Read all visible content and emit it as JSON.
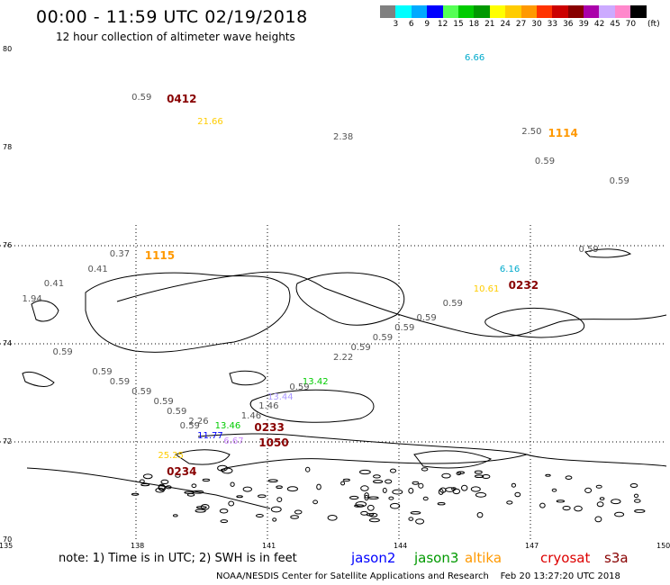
{
  "header": {
    "title": "00:00 - 11:59 UTC 02/19/2018",
    "subtitle": "12 hour collection of altimeter wave heights"
  },
  "legend": {
    "unit": "(ft)",
    "ticks": [
      "3",
      "6",
      "9",
      "12",
      "15",
      "18",
      "21",
      "24",
      "27",
      "30",
      "33",
      "36",
      "39",
      "42",
      "45",
      "70"
    ],
    "colors": [
      "#808080",
      "#00ffff",
      "#00aaff",
      "#0000ff",
      "#55ff55",
      "#00cc00",
      "#009900",
      "#ffff00",
      "#ffcc00",
      "#ff9900",
      "#ff3300",
      "#cc0000",
      "#880000",
      "#aa00aa",
      "#ccaaff",
      "#ff88cc",
      "#000000"
    ]
  },
  "axes": {
    "lat_labels": [
      "80",
      "78",
      "76",
      "74",
      "72",
      "70"
    ],
    "lon_labels": [
      "135",
      "138",
      "141",
      "144",
      "147",
      "150"
    ]
  },
  "observations": [
    {
      "text": "6.66",
      "color": "#00aacc",
      "lon": 145.5,
      "lat": 79.9
    },
    {
      "text": "0.59",
      "color": "#555555",
      "lon": 137.9,
      "lat": 79.1
    },
    {
      "text": "0412",
      "color": "#880000",
      "lon": 138.7,
      "lat": 79.1,
      "big": true
    },
    {
      "text": "21.66",
      "color": "#ffcc00",
      "lon": 139.4,
      "lat": 78.6
    },
    {
      "text": "2.38",
      "color": "#555555",
      "lon": 142.5,
      "lat": 78.3
    },
    {
      "text": "2.50",
      "color": "#555555",
      "lon": 146.8,
      "lat": 78.4
    },
    {
      "text": "1114",
      "color": "#ff9900",
      "lon": 147.4,
      "lat": 78.4,
      "big": true
    },
    {
      "text": "0.59",
      "color": "#555555",
      "lon": 147.1,
      "lat": 77.8
    },
    {
      "text": "0.59",
      "color": "#555555",
      "lon": 148.8,
      "lat": 77.4
    },
    {
      "text": "0.59",
      "color": "#555555",
      "lon": 148.1,
      "lat": 76.0
    },
    {
      "text": "6.16",
      "color": "#00aacc",
      "lon": 146.3,
      "lat": 75.6
    },
    {
      "text": "0232",
      "color": "#880000",
      "lon": 146.5,
      "lat": 75.3,
      "big": true
    },
    {
      "text": "10.61",
      "color": "#ffcc00",
      "lon": 145.7,
      "lat": 75.2
    },
    {
      "text": "0.59",
      "color": "#555555",
      "lon": 145.0,
      "lat": 74.9
    },
    {
      "text": "0.59",
      "color": "#555555",
      "lon": 144.4,
      "lat": 74.6
    },
    {
      "text": "0.59",
      "color": "#555555",
      "lon": 143.9,
      "lat": 74.4
    },
    {
      "text": "0.59",
      "color": "#555555",
      "lon": 143.4,
      "lat": 74.2
    },
    {
      "text": "0.59",
      "color": "#555555",
      "lon": 142.9,
      "lat": 74.0
    },
    {
      "text": "2.22",
      "color": "#555555",
      "lon": 142.5,
      "lat": 73.8
    },
    {
      "text": "13.42",
      "color": "#00cc00",
      "lon": 141.8,
      "lat": 73.3
    },
    {
      "text": "0.59",
      "color": "#555555",
      "lon": 141.5,
      "lat": 73.2
    },
    {
      "text": "13.44",
      "color": "#aa99ff",
      "lon": 141.0,
      "lat": 73.0
    },
    {
      "text": "1.46",
      "color": "#555555",
      "lon": 140.4,
      "lat": 72.6
    },
    {
      "text": "1.46",
      "color": "#555555",
      "lon": 140.8,
      "lat": 72.8
    },
    {
      "text": "0233",
      "color": "#880000",
      "lon": 140.7,
      "lat": 72.4,
      "big": true
    },
    {
      "text": "1050",
      "color": "#880000",
      "lon": 140.8,
      "lat": 72.1,
      "big": true
    },
    {
      "text": "13.46",
      "color": "#00cc00",
      "lon": 139.8,
      "lat": 72.4
    },
    {
      "text": "2.26",
      "color": "#555555",
      "lon": 139.2,
      "lat": 72.5
    },
    {
      "text": "11.77",
      "color": "#0000ff",
      "lon": 139.4,
      "lat": 72.2
    },
    {
      "text": "6.67",
      "color": "#cc88ff",
      "lon": 140.0,
      "lat": 72.1
    },
    {
      "text": "0.59",
      "color": "#555555",
      "lon": 139.0,
      "lat": 72.4
    },
    {
      "text": "0.59",
      "color": "#555555",
      "lon": 138.7,
      "lat": 72.7
    },
    {
      "text": "0.59",
      "color": "#555555",
      "lon": 138.4,
      "lat": 72.9
    },
    {
      "text": "0.59",
      "color": "#555555",
      "lon": 137.9,
      "lat": 73.1
    },
    {
      "text": "0.59",
      "color": "#555555",
      "lon": 137.4,
      "lat": 73.3
    },
    {
      "text": "0.59",
      "color": "#555555",
      "lon": 137.0,
      "lat": 73.5
    },
    {
      "text": "25.25",
      "color": "#ffcc00",
      "lon": 138.5,
      "lat": 71.8
    },
    {
      "text": "0234",
      "color": "#880000",
      "lon": 138.7,
      "lat": 71.5,
      "big": true
    },
    {
      "text": "0.37",
      "color": "#555555",
      "lon": 137.4,
      "lat": 75.9
    },
    {
      "text": "1115",
      "color": "#ff9900",
      "lon": 138.2,
      "lat": 75.9,
      "big": true
    },
    {
      "text": "0.41",
      "color": "#555555",
      "lon": 136.9,
      "lat": 75.6
    },
    {
      "text": "0.41",
      "color": "#555555",
      "lon": 135.9,
      "lat": 75.3
    },
    {
      "text": "1.94",
      "color": "#555555",
      "lon": 135.4,
      "lat": 75.0
    },
    {
      "text": "0.59",
      "color": "#555555",
      "lon": 136.1,
      "lat": 73.9
    }
  ],
  "footer": {
    "note": "note: 1) Time is in UTC; 2) SWH is in feet",
    "satellites": [
      {
        "name": "jason2",
        "color": "#0000ff"
      },
      {
        "name": "jason3",
        "color": "#009900"
      },
      {
        "name": "altika",
        "color": "#ff9900"
      },
      {
        "name": "cryosat",
        "color": "#dd0000"
      },
      {
        "name": "s3a",
        "color": "#880000"
      }
    ],
    "credit": "NOAA/NESDIS Center for Satellite Applications and Research",
    "timestamp": "Feb 20 13:27:20 UTC 2018"
  }
}
